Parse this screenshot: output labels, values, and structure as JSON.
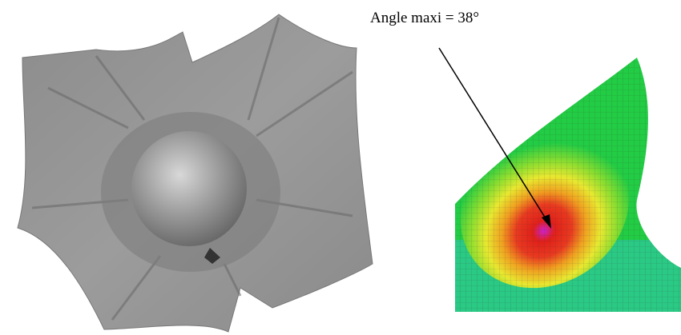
{
  "annotation": "Angle maxi = 38°"
}
